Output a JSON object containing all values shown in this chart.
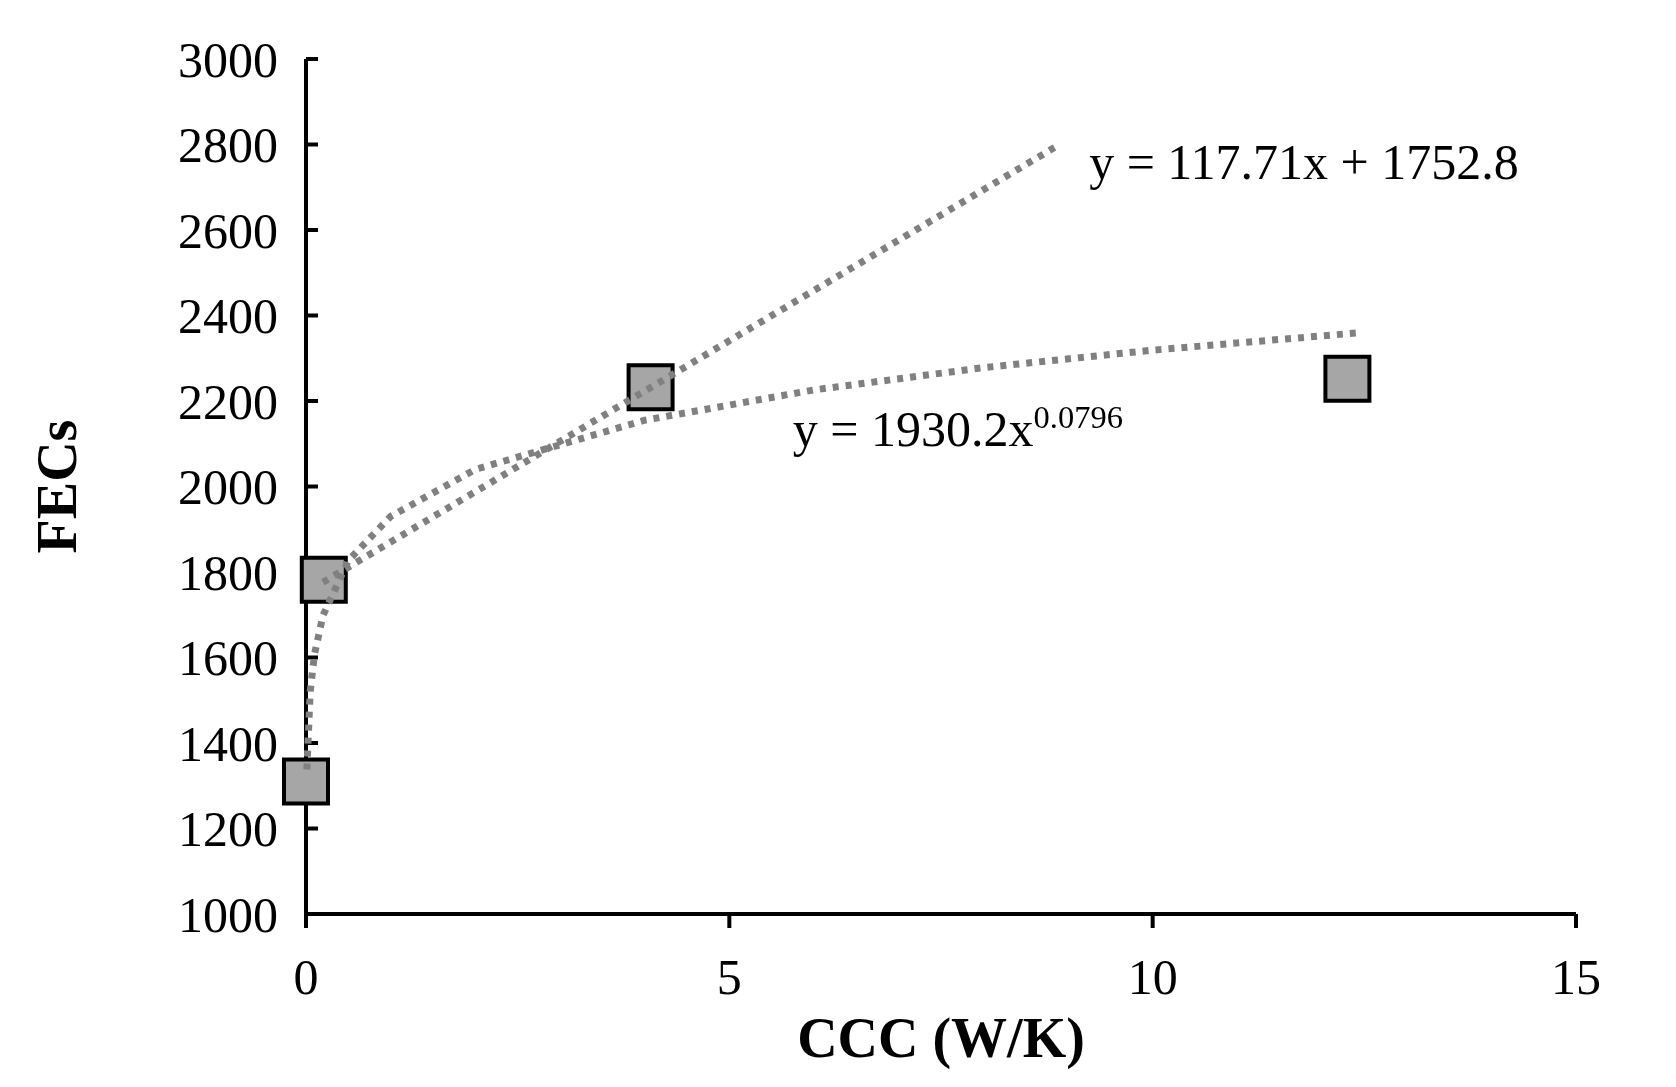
{
  "chart_data": {
    "type": "scatter",
    "xlabel": "CCC (W/K)",
    "ylabel": "FECs",
    "xlim": [
      0,
      15
    ],
    "xticks": [
      0,
      5,
      10,
      15
    ],
    "ylim": [
      1000,
      3000
    ],
    "yticks": [
      1000,
      1200,
      1400,
      1600,
      1800,
      2000,
      2200,
      2400,
      2600,
      2800,
      3000
    ],
    "grid": false,
    "legend": false,
    "series": [
      {
        "type": "line",
        "color": "#808080",
        "line_style": "dotted",
        "marker": "none",
        "x": [
          0.2,
          8.9
        ],
        "values": [
          1776,
          2800
        ]
      },
      {
        "type": "line",
        "color": "#808080",
        "line_style": "dotted",
        "marker": "none",
        "x": [
          0.01,
          0.05,
          0.1,
          0.2,
          0.5,
          1,
          2,
          4,
          6,
          8,
          10,
          12.4
        ],
        "values": [
          1338,
          1521,
          1607,
          1698,
          1827,
          1930,
          2040,
          2155,
          2226,
          2278,
          2319,
          2359
        ]
      },
      {
        "type": "scatter",
        "color": "#a6a6a6",
        "marker": "square",
        "x": [
          0,
          0.21,
          4.07,
          12.3
        ],
        "values": [
          1310,
          1782,
          2232,
          2252
        ]
      }
    ],
    "annotations": [
      "y = 117.71x + 1752.8",
      "y = 1930.2x$^{0.0796}$"
    ]
  }
}
